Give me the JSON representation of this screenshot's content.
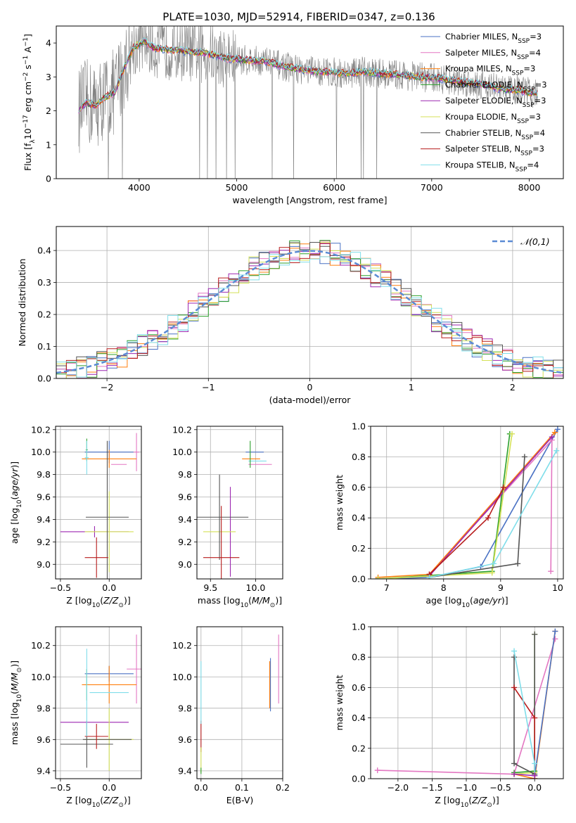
{
  "figure": {
    "title": "PLATE=1030, MJD=52914, FIBERID=0347, z=0.136"
  },
  "colors": {
    "chabrier_miles": "#4a72c4",
    "salpeter_miles": "#e377c2",
    "kroupa_miles": "#ff7f0e",
    "chabrier_elodie": "#2ca02c",
    "salpeter_elodie": "#9c27b0",
    "kroupa_elodie": "#d4e157",
    "chabrier_stelib": "#555555",
    "salpeter_stelib": "#b71c1c",
    "kroupa_stelib": "#80deea",
    "data": "#808080",
    "normal_curve": "#5b8bd4"
  },
  "chart_data": [
    {
      "id": "spectrum",
      "type": "line",
      "xlabel": "wavelength [Angstrom, rest frame]",
      "ylabel": "Flux [fλ10⁻¹⁷ erg cm⁻² s⁻¹ A⁻¹]",
      "xlim": [
        3150,
        8350
      ],
      "ylim": [
        0,
        4.5
      ],
      "xticks": [
        4000,
        5000,
        6000,
        7000,
        8000
      ],
      "yticks": [
        0,
        1,
        2,
        3,
        4
      ],
      "legend_position": "top-right",
      "legend": [
        "Chabrier MILES, NSSP=3",
        "Salpeter MILES, NSSP=4",
        "Kroupa MILES, NSSP=3",
        "Chabrier ELODIE, NSSP=3",
        "Salpeter ELODIE, NSSP=3",
        "Kroupa ELODIE, NSSP=3",
        "Chabrier STELIB, NSSP=4",
        "Salpeter STELIB, NSSP=3",
        "Kroupa STELIB, NSSP=4"
      ],
      "model_curve": {
        "x": [
          3380,
          3450,
          3550,
          3650,
          3750,
          3850,
          3950,
          4050,
          4150,
          4300,
          4500,
          4700,
          4900,
          5100,
          5300,
          5500,
          5700,
          5900,
          6100,
          6300,
          6500,
          6700,
          6900,
          7100,
          7300,
          7500,
          7700,
          7900,
          8080
        ],
        "y": [
          2.0,
          2.25,
          2.15,
          2.4,
          2.55,
          3.3,
          3.9,
          4.05,
          3.85,
          3.8,
          3.75,
          3.7,
          3.55,
          3.5,
          3.45,
          3.3,
          3.2,
          3.15,
          3.1,
          3.15,
          3.1,
          3.05,
          3.0,
          2.95,
          2.85,
          2.8,
          2.65,
          2.6,
          2.5
        ]
      }
    },
    {
      "id": "residual-histogram",
      "type": "histogram",
      "xlabel": "(data-model)/error",
      "ylabel": "Normed distribution",
      "xlim": [
        -2.5,
        2.5
      ],
      "ylim": [
        0,
        0.475
      ],
      "xticks": [
        -2,
        -1,
        0,
        1,
        2
      ],
      "yticks": [
        0.0,
        0.1,
        0.2,
        0.3,
        0.4
      ],
      "grid": true,
      "legend_position": "top-right",
      "legend": [
        "𝒩(0,1)"
      ]
    },
    {
      "id": "age-vs-Z",
      "type": "scatter",
      "xlabel": "Z [log10(Z/Z⊙)]",
      "ylabel": "age  [log10(age/yr)]",
      "xlim": [
        -0.55,
        0.33
      ],
      "ylim": [
        8.87,
        10.23
      ],
      "xticks": [
        -0.5,
        0.0
      ],
      "yticks": [
        9.0,
        9.2,
        9.4,
        9.6,
        9.8,
        10.0,
        10.2
      ],
      "grid": true,
      "points": [
        {
          "series": "chabrier_miles",
          "x": 0.0,
          "y": 10.0,
          "xerr": 0.25,
          "yerr": 0.1
        },
        {
          "series": "salpeter_miles",
          "x": 0.28,
          "y": 10.0,
          "xerr": 0.03,
          "yerr": 0.17
        },
        {
          "series": "kroupa_miles",
          "x": 0.0,
          "y": 9.94,
          "xerr": 0.28,
          "yerr": 0.08
        },
        {
          "series": "chabrier_elodie",
          "x": -0.23,
          "y": 10.02,
          "xerr": 0.01,
          "yerr": 0.1
        },
        {
          "series": "salpeter_elodie",
          "x": -0.15,
          "y": 9.29,
          "xerr": 0.35,
          "yerr": 0.05
        },
        {
          "series": "kroupa_elodie",
          "x": 0.0,
          "y": 9.29,
          "xerr": 0.25,
          "yerr": 0.36
        },
        {
          "series": "chabrier_stelib",
          "x": -0.02,
          "y": 9.42,
          "xerr": 0.22,
          "yerr": 0.68
        },
        {
          "series": "salpeter_stelib",
          "x": -0.13,
          "y": 9.06,
          "xerr": 0.12,
          "yerr": 0.18
        },
        {
          "series": "kroupa_stelib",
          "x": -0.23,
          "y": 9.95,
          "xerr": 0.02,
          "yerr": 0.15
        },
        {
          "series": "salpeter_miles",
          "x": 0.1,
          "y": 9.89,
          "xerr": 0.08,
          "yerr": 0.0
        }
      ]
    },
    {
      "id": "age-vs-mass",
      "type": "scatter",
      "xlabel": "mass [log10(M/M⊙)]",
      "ylabel": "",
      "xlim": [
        9.35,
        10.3
      ],
      "ylim": [
        8.87,
        10.23
      ],
      "xticks": [
        9.5,
        10.0
      ],
      "yticks": [
        9.0,
        9.2,
        9.4,
        9.6,
        9.8,
        10.0,
        10.2
      ],
      "grid": true,
      "points": [
        {
          "series": "chabrier_miles",
          "x": 9.99,
          "y": 10.0,
          "xerr": 0.1,
          "yerr": 0.0
        },
        {
          "series": "salpeter_miles",
          "x": 10.05,
          "y": 9.89,
          "xerr": 0.13,
          "yerr": 0.0
        },
        {
          "series": "kroupa_miles",
          "x": 9.95,
          "y": 9.94,
          "xerr": 0.1,
          "yerr": 0.0
        },
        {
          "series": "salpeter_elodie",
          "x": 9.72,
          "y": 9.29,
          "xerr": 0.0,
          "yerr": 0.4
        },
        {
          "series": "kroupa_elodie",
          "x": 9.6,
          "y": 9.29,
          "xerr": 0.18,
          "yerr": 0.0
        },
        {
          "series": "chabrier_stelib",
          "x": 9.6,
          "y": 9.42,
          "xerr": 0.0,
          "yerr": 0.38
        },
        {
          "series": "chabrier_stelib",
          "x": 9.62,
          "y": 9.42,
          "xerr": 0.3,
          "yerr": 0.0
        },
        {
          "series": "salpeter_stelib",
          "x": 9.62,
          "y": 9.06,
          "xerr": 0.2,
          "yerr": 0.46
        },
        {
          "series": "kroupa_stelib",
          "x": 10.02,
          "y": 9.92,
          "xerr": 0.1,
          "yerr": 0.0
        },
        {
          "series": "chabrier_elodie",
          "x": 9.94,
          "y": 9.98,
          "xerr": 0.0,
          "yerr": 0.12
        }
      ]
    },
    {
      "id": "massweight-vs-age",
      "type": "line",
      "xlabel": "age  [log10(age/yr)]",
      "ylabel": "mass weight",
      "xlim": [
        6.72,
        10.1
      ],
      "ylim": [
        0,
        1.0
      ],
      "xticks": [
        7,
        8,
        9,
        10
      ],
      "yticks": [
        0.0,
        0.2,
        0.4,
        0.6,
        0.8,
        1.0
      ],
      "grid": true,
      "series": [
        {
          "key": "chabrier_miles",
          "x": [
            6.85,
            7.75,
            8.65,
            10.0
          ],
          "y": [
            0.0,
            0.01,
            0.08,
            0.98
          ]
        },
        {
          "key": "salpeter_miles",
          "x": [
            7.75,
            9.9,
            9.88
          ],
          "y": [
            0.03,
            0.91,
            0.05
          ]
        },
        {
          "key": "kroupa_miles",
          "x": [
            6.85,
            7.75,
            9.95
          ],
          "y": [
            0.01,
            0.03,
            0.96
          ]
        },
        {
          "key": "chabrier_elodie",
          "x": [
            6.85,
            8.85,
            9.16
          ],
          "y": [
            0.0,
            0.05,
            0.95
          ]
        },
        {
          "key": "salpeter_elodie",
          "x": [
            7.75,
            9.9
          ],
          "y": [
            0.02,
            0.93
          ]
        },
        {
          "key": "kroupa_elodie",
          "x": [
            6.85,
            8.85,
            9.2
          ],
          "y": [
            0.0,
            0.04,
            0.95
          ]
        },
        {
          "key": "chabrier_stelib",
          "x": [
            7.75,
            9.3,
            9.42
          ],
          "y": [
            0.01,
            0.1,
            0.8
          ]
        },
        {
          "key": "salpeter_stelib",
          "x": [
            7.75,
            8.78,
            9.05
          ],
          "y": [
            0.03,
            0.4,
            0.6
          ]
        },
        {
          "key": "kroupa_stelib",
          "x": [
            7.75,
            8.88,
            9.98
          ],
          "y": [
            0.01,
            0.1,
            0.84
          ]
        }
      ]
    },
    {
      "id": "mass-vs-Z",
      "type": "scatter",
      "xlabel": "Z [log10(Z/Z⊙)]",
      "ylabel": "mass [log10(M/M⊙)]",
      "xlim": [
        -0.55,
        0.33
      ],
      "ylim": [
        9.35,
        10.32
      ],
      "xticks": [
        -0.5,
        0.0
      ],
      "yticks": [
        9.4,
        9.6,
        9.8,
        10.0,
        10.2
      ],
      "grid": true,
      "points": [
        {
          "series": "chabrier_miles",
          "x": 0.0,
          "y": 10.02,
          "xerr": 0.25,
          "yerr": 0.05
        },
        {
          "series": "salpeter_miles",
          "x": 0.28,
          "y": 10.05,
          "xerr": 0.1,
          "yerr": 0.22
        },
        {
          "series": "kroupa_miles",
          "x": 0.0,
          "y": 9.95,
          "xerr": 0.28,
          "yerr": 0.12
        },
        {
          "series": "chabrier_elodie",
          "x": -0.23,
          "y": 9.95,
          "xerr": 0.0,
          "yerr": 0.1
        },
        {
          "series": "salpeter_elodie",
          "x": -0.15,
          "y": 9.71,
          "xerr": 0.35,
          "yerr": 0.0
        },
        {
          "series": "kroupa_elodie",
          "x": 0.0,
          "y": 9.6,
          "xerr": 0.25,
          "yerr": 0.2
        },
        {
          "series": "chabrier_stelib",
          "x": -0.02,
          "y": 9.6,
          "xerr": 0.25,
          "yerr": 0.0
        },
        {
          "series": "chabrier_stelib",
          "x": -0.23,
          "y": 9.57,
          "xerr": 0.27,
          "yerr": 0.15
        },
        {
          "series": "salpeter_stelib",
          "x": -0.13,
          "y": 9.62,
          "xerr": 0.12,
          "yerr": 0.08
        },
        {
          "series": "kroupa_stelib",
          "x": -0.23,
          "y": 9.9,
          "xerr": 0.0,
          "yerr": 0.28
        },
        {
          "series": "kroupa_stelib",
          "x": 0.0,
          "y": 9.9,
          "xerr": 0.2,
          "yerr": 0.0
        }
      ]
    },
    {
      "id": "mass-vs-EBV",
      "type": "scatter",
      "xlabel": "E(B-V)",
      "ylabel": "",
      "xlim": [
        -0.01,
        0.2
      ],
      "ylim": [
        9.35,
        10.32
      ],
      "xticks": [
        0.0,
        0.1,
        0.2
      ],
      "yticks": [
        9.4,
        9.6,
        9.8,
        10.0,
        10.2
      ],
      "grid": true,
      "points": [
        {
          "series": "chabrier_miles",
          "x": 0.17,
          "y": 9.95,
          "xerr": 0.0,
          "yerr": 0.17
        },
        {
          "series": "salpeter_miles",
          "x": 0.19,
          "y": 10.05,
          "xerr": 0.0,
          "yerr": 0.22
        },
        {
          "series": "kroupa_miles",
          "x": 0.168,
          "y": 9.95,
          "xerr": 0.0,
          "yerr": 0.15
        },
        {
          "series": "salpeter_stelib",
          "x": 0.0,
          "y": 9.62,
          "xerr": 0.0,
          "yerr": 0.1
        },
        {
          "series": "kroupa_elodie",
          "x": 0.0,
          "y": 9.47,
          "xerr": 0.0,
          "yerr": 0.08
        },
        {
          "series": "kroupa_stelib",
          "x": 0.0,
          "y": 9.9,
          "xerr": 0.0,
          "yerr": 0.2
        },
        {
          "series": "chabrier_elodie",
          "x": 0.0,
          "y": 9.4,
          "xerr": 0.0,
          "yerr": 0.02
        }
      ]
    },
    {
      "id": "massweight-vs-Z",
      "type": "line",
      "xlabel": "Z [log10(Z/Z⊙)]",
      "ylabel": "mass weight",
      "xlim": [
        -2.4,
        0.42
      ],
      "ylim": [
        0,
        1.0
      ],
      "xticks": [
        -2.0,
        -1.5,
        -1.0,
        -0.5,
        0.0
      ],
      "yticks": [
        0.0,
        0.2,
        0.4,
        0.6,
        0.8,
        1.0
      ],
      "grid": true,
      "series": [
        {
          "key": "salpeter_miles",
          "x": [
            -2.3,
            -0.3,
            0.3
          ],
          "y": [
            0.055,
            0.03,
            0.92
          ]
        },
        {
          "key": "kroupa_miles",
          "x": [
            -0.3,
            0.0,
            0.3
          ],
          "y": [
            0.03,
            0.0,
            0.97
          ]
        },
        {
          "key": "chabrier_miles",
          "x": [
            0.0,
            0.3
          ],
          "y": [
            0.02,
            0.97
          ]
        },
        {
          "key": "chabrier_elodie",
          "x": [
            -0.3,
            0.0,
            0.0
          ],
          "y": [
            0.04,
            0.05,
            0.95
          ]
        },
        {
          "key": "kroupa_elodie",
          "x": [
            -0.3,
            0.0,
            0.0
          ],
          "y": [
            0.03,
            0.04,
            0.95
          ]
        },
        {
          "key": "chabrier_stelib",
          "x": [
            -0.3,
            -0.3,
            0.0,
            0.0
          ],
          "y": [
            0.8,
            0.1,
            0.03,
            0.95
          ]
        },
        {
          "key": "salpeter_stelib",
          "x": [
            -0.3,
            0.0,
            0.0
          ],
          "y": [
            0.6,
            0.4,
            0.0
          ]
        },
        {
          "key": "kroupa_stelib",
          "x": [
            -0.3,
            0.0,
            0.0
          ],
          "y": [
            0.84,
            0.1,
            0.02
          ]
        },
        {
          "key": "salpeter_elodie",
          "x": [
            -0.3,
            0.0
          ],
          "y": [
            0.03,
            0.02
          ]
        }
      ]
    }
  ]
}
